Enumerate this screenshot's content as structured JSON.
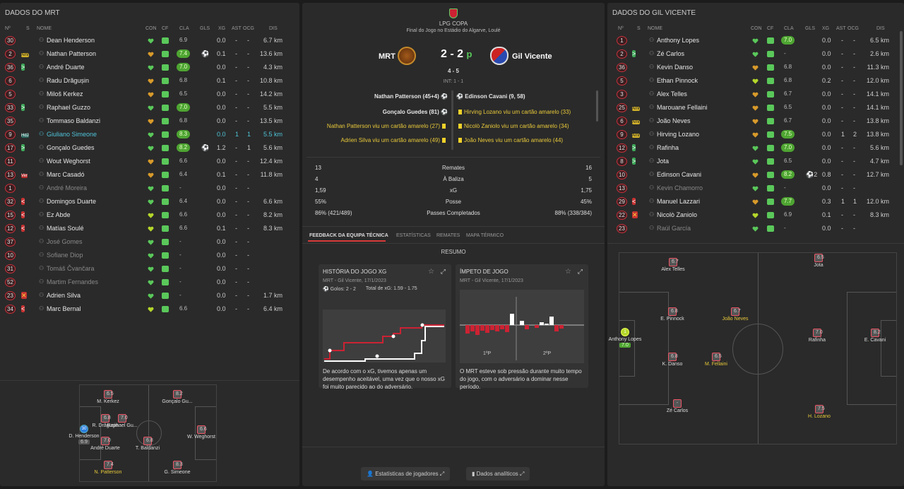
{
  "left": {
    "title": "DADOS DO MRT",
    "headers": {
      "no": "Nº",
      "s": "S",
      "name": "NOME",
      "con": "CON",
      "cf": "CF",
      "cla": "CLA",
      "gls": "GLS",
      "xg": "XG",
      "ast": "AST",
      "ocg": "OCG",
      "dis": "DIS"
    },
    "players": [
      {
        "no": "30",
        "tag": "",
        "name": "Dean Henderson",
        "cla": "6.9",
        "claG": false,
        "gls": "",
        "xg": "0.0",
        "ast": "-",
        "ocg": "-",
        "dis": "6.7 km",
        "heart": "#5ac85a"
      },
      {
        "no": "2",
        "tag": "Amr",
        "name": "Nathan Patterson",
        "cla": "7.4",
        "claG": true,
        "gls": "⚽",
        "xg": "0.1",
        "ast": "-",
        "ocg": "-",
        "dis": "13.6 km",
        "heart": "#d89a2a"
      },
      {
        "no": "36",
        "tag": ">",
        "name": "André Duarte",
        "cla": "7.0",
        "claG": true,
        "gls": "",
        "xg": "0.0",
        "ast": "-",
        "ocg": "-",
        "dis": "4.3 km",
        "heart": "#5ac85a"
      },
      {
        "no": "6",
        "tag": "",
        "name": "Radu Drăgușin",
        "cla": "6.8",
        "claG": false,
        "gls": "",
        "xg": "0.1",
        "ast": "-",
        "ocg": "-",
        "dis": "10.8 km",
        "heart": "#d89a2a"
      },
      {
        "no": "5",
        "tag": "",
        "name": "Miloš Kerkez",
        "cla": "6.5",
        "claG": false,
        "gls": "",
        "xg": "0.0",
        "ast": "-",
        "ocg": "-",
        "dis": "14.2 km",
        "heart": "#d89a2a"
      },
      {
        "no": "33",
        "tag": ">",
        "name": "Raphael Guzzo",
        "cla": "7.0",
        "claG": true,
        "gls": "",
        "xg": "0.0",
        "ast": "-",
        "ocg": "-",
        "dis": "5.5 km",
        "heart": "#5ac85a"
      },
      {
        "no": "35",
        "tag": "",
        "name": "Tommaso Baldanzi",
        "cla": "6.8",
        "claG": false,
        "gls": "",
        "xg": "0.0",
        "ast": "-",
        "ocg": "-",
        "dis": "13.5 km",
        "heart": "#d89a2a"
      },
      {
        "no": "9",
        "tag": "HdJ",
        "name": "Giuliano Simeone",
        "cla": "8.3",
        "claG": true,
        "gls": "",
        "xg": "0.0",
        "ast": "1",
        "ocg": "1",
        "dis": "5.5 km",
        "heart": "#5ac85a",
        "cyan": true
      },
      {
        "no": "17",
        "tag": ">",
        "name": "Gonçalo Guedes",
        "cla": "8.2",
        "claG": true,
        "gls": "⚽",
        "xg": "1.2",
        "ast": "-",
        "ocg": "1",
        "dis": "5.6 km",
        "heart": "#5ac85a"
      },
      {
        "no": "11",
        "tag": "",
        "name": "Wout Weghorst",
        "cla": "6.6",
        "claG": false,
        "gls": "",
        "xg": "0.0",
        "ast": "-",
        "ocg": "-",
        "dis": "12.4 km",
        "heart": "#d89a2a"
      },
      {
        "no": "13",
        "tag": "Ver",
        "name": "Marc Casadó",
        "cla": "6.4",
        "claG": false,
        "gls": "",
        "xg": "0.1",
        "ast": "-",
        "ocg": "-",
        "dis": "11.8 km",
        "heart": "#d89a2a"
      },
      {
        "no": "1",
        "tag": "",
        "name": "André Moreira",
        "cla": "-",
        "claG": false,
        "gls": "",
        "xg": "0.0",
        "ast": "-",
        "ocg": "-",
        "dis": "",
        "heart": "#5ac85a",
        "dim": true
      },
      {
        "no": "32",
        "tag": "<",
        "name": "Domingos Duarte",
        "cla": "6.4",
        "claG": false,
        "gls": "",
        "xg": "0.0",
        "ast": "-",
        "ocg": "-",
        "dis": "6.6 km",
        "heart": "#5ac85a"
      },
      {
        "no": "15",
        "tag": "<",
        "name": "Ez Abde",
        "cla": "6.6",
        "claG": false,
        "gls": "",
        "xg": "0.0",
        "ast": "-",
        "ocg": "-",
        "dis": "8.2 km",
        "heart": "#b4d72a"
      },
      {
        "no": "12",
        "tag": "<",
        "name": "Matías Soulé",
        "cla": "6.6",
        "claG": false,
        "gls": "",
        "xg": "0.1",
        "ast": "-",
        "ocg": "-",
        "dis": "8.3 km",
        "heart": "#b4d72a"
      },
      {
        "no": "37",
        "tag": "",
        "name": "José Gomes",
        "cla": "-",
        "claG": false,
        "gls": "",
        "xg": "0.0",
        "ast": "-",
        "ocg": "-",
        "dis": "",
        "heart": "#5ac85a",
        "dim": true
      },
      {
        "no": "10",
        "tag": "",
        "name": "Sofiane Diop",
        "cla": "-",
        "claG": false,
        "gls": "",
        "xg": "0.0",
        "ast": "-",
        "ocg": "-",
        "dis": "",
        "heart": "#5ac85a",
        "dim": true
      },
      {
        "no": "31",
        "tag": "",
        "name": "Tomáš Čvančara",
        "cla": "-",
        "claG": false,
        "gls": "",
        "xg": "0.0",
        "ast": "-",
        "ocg": "-",
        "dis": "",
        "heart": "#5ac85a",
        "dim": true
      },
      {
        "no": "52",
        "tag": "",
        "name": "Martim Fernandes",
        "cla": "-",
        "claG": false,
        "gls": "",
        "xg": "0.0",
        "ast": "-",
        "ocg": "-",
        "dis": "",
        "heart": "#5ac85a",
        "dim": true
      },
      {
        "no": "23",
        "tag": "x",
        "name": "Adrien Silva",
        "cla": "-",
        "claG": false,
        "gls": "",
        "xg": "0.0",
        "ast": "-",
        "ocg": "-",
        "dis": "1.7 km",
        "heart": "#5ac85a"
      },
      {
        "no": "34",
        "tag": "<",
        "name": "Marc Bernal",
        "cla": "6.6",
        "claG": false,
        "gls": "",
        "xg": "0.0",
        "ast": "-",
        "ocg": "-",
        "dis": "6.4 km",
        "heart": "#b4d72a"
      }
    ],
    "pitch": [
      {
        "no": "5",
        "name": "M. Kerkez",
        "rating": "6.5",
        "g": false,
        "color": "r"
      },
      {
        "no": "17",
        "name": "Gonçalo Gu...",
        "rating": "8.2",
        "g": true,
        "color": "r"
      },
      {
        "no": "6",
        "name": "R. Drăgușin",
        "rating": "6.8",
        "g": false,
        "color": "r"
      },
      {
        "no": "33",
        "name": "Raphael Gu...",
        "rating": "7.0",
        "g": true,
        "color": "r"
      },
      {
        "no": "30",
        "name": "D. Henderson",
        "rating": "6.9",
        "g": false,
        "color": "b"
      },
      {
        "no": "36",
        "name": "André Duarte",
        "rating": "7.0",
        "g": true,
        "color": "r"
      },
      {
        "no": "35",
        "name": "T. Baldanzi",
        "rating": "6.8",
        "g": false,
        "color": "r"
      },
      {
        "no": "11",
        "name": "W. Weghorst",
        "rating": "6.6",
        "g": false,
        "color": "r"
      },
      {
        "no": "2",
        "name": "N. Patterson",
        "rating": "7.4",
        "g": true,
        "color": "r",
        "y": true
      },
      {
        "no": "9",
        "name": "G. Simeone",
        "rating": "8.3",
        "g": true,
        "color": "r"
      }
    ]
  },
  "mid": {
    "comp": "LPG COPA",
    "venue": "Final do Jogo no Estádio do Algarve, Loulé",
    "home": "MRT",
    "away": "Gil Vicente",
    "score": "2 - 2",
    "suffix": "p",
    "pens": "4 - 5",
    "ht": "INT: 1 - 1",
    "events_home": [
      "Nathan Patterson (45+4)",
      "Gonçalo Guedes (81)",
      "Nathan Patterson viu um cartão amarelo (27)",
      "Adrien Silva viu um cartão amarelo (49)"
    ],
    "events_away": [
      "Edinson Cavani (9, 58)",
      "Hirving Lozano viu um cartão amarelo (33)",
      "Nicolò Zaniolo viu um cartão amarelo (34)",
      "João Neves viu um cartão amarelo (44)"
    ],
    "stats": [
      {
        "h": "13",
        "label": "Remates",
        "a": "16"
      },
      {
        "h": "4",
        "label": "À Baliza",
        "a": "5"
      },
      {
        "h": "1,59",
        "label": "xG",
        "a": "1,75"
      },
      {
        "h": "55%",
        "label": "Posse",
        "a": "45%"
      },
      {
        "h": "86% (421/489)",
        "label": "Passes Completados",
        "a": "88% (338/384)"
      }
    ],
    "tabs": [
      "FEEDBACK DA EQUIPA TÉCNICA",
      "ESTATÍSTICAS",
      "REMATES",
      "MAPA TÉRMICO"
    ],
    "resumo": "RESUMO",
    "card1": {
      "title": "HISTÓRIA DO JOGO XG",
      "sub": "MRT - Gil Vicente, 17/1/2023",
      "goals": "Golos: 2 - 2",
      "total": "Total de xG: 1.59 - 1.75",
      "text": "De acordo com o xG, tivemos apenas um desempenho aceitável, uma vez que o nosso xG foi muito parecido ao do adversário."
    },
    "card2": {
      "title": "ÍMPETO DE JOGO",
      "sub": "MRT - Gil Vicente, 17/1/2023",
      "h1": "1ºP",
      "h2": "2ºP",
      "text": "O MRT esteve sob pressão durante muito tempo do jogo, com o adversário a dominar nesse período."
    },
    "btn1": "Estatísticas de jogadores",
    "btn2": "Dados analíticos"
  },
  "right": {
    "title": "DADOS DO GIL VICENTE",
    "players": [
      {
        "no": "1",
        "tag": "",
        "name": "Anthony Lopes",
        "cla": "7.0",
        "claG": true,
        "gls": "",
        "xg": "0.0",
        "ast": "-",
        "ocg": "-",
        "dis": "6.5 km",
        "heart": "#5ac85a"
      },
      {
        "no": "2",
        "tag": ">",
        "name": "Zé Carlos",
        "cla": "-",
        "claG": false,
        "gls": "",
        "xg": "0.0",
        "ast": "-",
        "ocg": "-",
        "dis": "2.6 km",
        "heart": "#5ac85a"
      },
      {
        "no": "36",
        "tag": "",
        "name": "Kevin Danso",
        "cla": "6.8",
        "claG": false,
        "gls": "",
        "xg": "0.0",
        "ast": "-",
        "ocg": "-",
        "dis": "11.3 km",
        "heart": "#d89a2a"
      },
      {
        "no": "5",
        "tag": "",
        "name": "Ethan Pinnock",
        "cla": "6.8",
        "claG": false,
        "gls": "",
        "xg": "0.2",
        "ast": "-",
        "ocg": "-",
        "dis": "12.0 km",
        "heart": "#b4d72a"
      },
      {
        "no": "3",
        "tag": "",
        "name": "Alex Telles",
        "cla": "6.7",
        "claG": false,
        "gls": "",
        "xg": "0.0",
        "ast": "-",
        "ocg": "-",
        "dis": "14.1 km",
        "heart": "#d89a2a"
      },
      {
        "no": "25",
        "tag": "Amr",
        "name": "Marouane Fellaini",
        "cla": "6.5",
        "claG": false,
        "gls": "",
        "xg": "0.0",
        "ast": "-",
        "ocg": "-",
        "dis": "14.1 km",
        "heart": "#d89a2a"
      },
      {
        "no": "6",
        "tag": "Amr",
        "name": "João Neves",
        "cla": "6.7",
        "claG": false,
        "gls": "",
        "xg": "0.0",
        "ast": "-",
        "ocg": "-",
        "dis": "13.8 km",
        "heart": "#d89a2a"
      },
      {
        "no": "9",
        "tag": "Amr",
        "name": "Hirving Lozano",
        "cla": "7.5",
        "claG": true,
        "gls": "",
        "xg": "0.0",
        "ast": "1",
        "ocg": "2",
        "dis": "13.8 km",
        "heart": "#d89a2a"
      },
      {
        "no": "12",
        "tag": ">",
        "name": "Rafinha",
        "cla": "7.0",
        "claG": true,
        "gls": "",
        "xg": "0.0",
        "ast": "-",
        "ocg": "-",
        "dis": "5.6 km",
        "heart": "#5ac85a"
      },
      {
        "no": "8",
        "tag": ">",
        "name": "Jota",
        "cla": "6.5",
        "claG": false,
        "gls": "",
        "xg": "0.0",
        "ast": "-",
        "ocg": "-",
        "dis": "4.7 km",
        "heart": "#5ac85a"
      },
      {
        "no": "10",
        "tag": "",
        "name": "Edinson Cavani",
        "cla": "8.2",
        "claG": true,
        "gls": "⚽2",
        "xg": "0.8",
        "ast": "-",
        "ocg": "-",
        "dis": "12.7 km",
        "heart": "#d89a2a"
      },
      {
        "no": "13",
        "tag": "",
        "name": "Kevin Chamorro",
        "cla": "-",
        "claG": false,
        "gls": "",
        "xg": "0.0",
        "ast": "-",
        "ocg": "-",
        "dis": "",
        "heart": "#5ac85a",
        "dim": true
      },
      {
        "no": "29",
        "tag": "<",
        "name": "Manuel Lazzari",
        "cla": "7.7",
        "claG": true,
        "gls": "",
        "xg": "0.3",
        "ast": "1",
        "ocg": "1",
        "dis": "12.0 km",
        "heart": "#d89a2a"
      },
      {
        "no": "22",
        "tag": "x",
        "name": "Nicolò Zaniolo",
        "cla": "6.9",
        "claG": false,
        "gls": "",
        "xg": "0.1",
        "ast": "-",
        "ocg": "-",
        "dis": "8.3 km",
        "heart": "#b4d72a"
      },
      {
        "no": "23",
        "tag": "",
        "name": "Raúl García",
        "cla": "-",
        "claG": false,
        "gls": "",
        "xg": "0.0",
        "ast": "-",
        "ocg": "-",
        "dis": "",
        "heart": "#5ac85a",
        "dim": true
      }
    ],
    "pitch": [
      {
        "no": "3",
        "name": "Alex Telles",
        "rating": "6.7",
        "g": false,
        "color": "r"
      },
      {
        "no": "8",
        "name": "Jota",
        "rating": "6.5",
        "g": false,
        "color": "r"
      },
      {
        "no": "5",
        "name": "E. Pinnock",
        "rating": "6.8",
        "g": false,
        "color": "r"
      },
      {
        "no": "6",
        "name": "João Neves",
        "rating": "6.7",
        "g": false,
        "color": "r",
        "y": true
      },
      {
        "no": "1",
        "name": "Anthony Lopes",
        "rating": "7.0",
        "g": true,
        "color": "y"
      },
      {
        "no": "12",
        "name": "Rafinha",
        "rating": "7.0",
        "g": true,
        "color": "r"
      },
      {
        "no": "10",
        "name": "E. Cavani",
        "rating": "8.2",
        "g": true,
        "color": "r"
      },
      {
        "no": "36",
        "name": "K. Danso",
        "rating": "6.8",
        "g": false,
        "color": "r"
      },
      {
        "no": "25",
        "name": "M. Fellaini",
        "rating": "6.5",
        "g": false,
        "color": "r",
        "y": true
      },
      {
        "no": "2",
        "name": "Zé Carlos",
        "rating": "-",
        "g": false,
        "color": "r"
      },
      {
        "no": "9",
        "name": "H. Lozano",
        "rating": "7.5",
        "g": true,
        "color": "r",
        "y": true
      }
    ]
  }
}
